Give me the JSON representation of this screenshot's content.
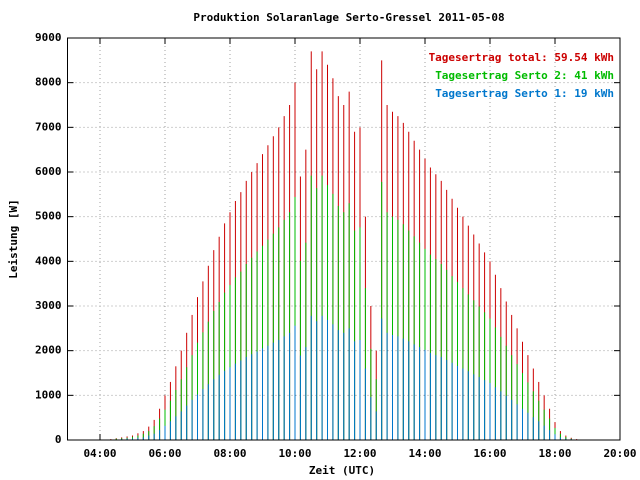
{
  "chart_data": {
    "type": "impulse",
    "title": "Produktion Solaranlage Serto-Gressel 2011-05-08",
    "x_label": "Zeit (UTC)",
    "y_label": "Leistung [W]",
    "xlim": [
      180,
      1200
    ],
    "ylim": [
      0,
      9000
    ],
    "xticks": [
      {
        "value": 240,
        "label": "04:00"
      },
      {
        "value": 360,
        "label": "06:00"
      },
      {
        "value": 480,
        "label": "08:00"
      },
      {
        "value": 600,
        "label": "10:00"
      },
      {
        "value": 720,
        "label": "12:00"
      },
      {
        "value": 840,
        "label": "14:00"
      },
      {
        "value": 960,
        "label": "16:00"
      },
      {
        "value": 1080,
        "label": "18:00"
      },
      {
        "value": 1200,
        "label": "20:00"
      }
    ],
    "yticks": [
      0,
      1000,
      2000,
      3000,
      4000,
      5000,
      6000,
      7000,
      8000,
      9000
    ],
    "grid": true,
    "legend": "top-right",
    "x": [
      240,
      250,
      260,
      270,
      280,
      290,
      300,
      310,
      320,
      330,
      340,
      350,
      360,
      370,
      380,
      390,
      400,
      410,
      420,
      430,
      440,
      450,
      460,
      470,
      480,
      490,
      500,
      510,
      520,
      530,
      540,
      550,
      560,
      570,
      580,
      590,
      600,
      610,
      620,
      630,
      640,
      650,
      660,
      670,
      680,
      690,
      700,
      710,
      720,
      730,
      740,
      750,
      760,
      770,
      780,
      790,
      800,
      810,
      820,
      830,
      840,
      850,
      860,
      870,
      880,
      890,
      900,
      910,
      920,
      930,
      940,
      950,
      960,
      970,
      980,
      990,
      1000,
      1010,
      1020,
      1030,
      1040,
      1050,
      1060,
      1070,
      1080,
      1090,
      1100,
      1110,
      1120,
      1130,
      1140
    ],
    "series": [
      {
        "name": "Tagesertrag total: 59.54 kWh",
        "color": "#cc0000",
        "values": [
          0,
          0,
          20,
          40,
          60,
          80,
          100,
          150,
          200,
          300,
          450,
          700,
          1000,
          1300,
          1650,
          2000,
          2400,
          2800,
          3200,
          3550,
          3900,
          4250,
          4550,
          4850,
          5100,
          5350,
          5550,
          5800,
          6000,
          6200,
          6400,
          6600,
          6800,
          7000,
          7250,
          7500,
          8000,
          5900,
          6500,
          8700,
          8300,
          8700,
          8400,
          8100,
          7700,
          7500,
          7800,
          6900,
          7000,
          5000,
          3000,
          2000,
          8500,
          7500,
          7350,
          7250,
          7100,
          6900,
          6700,
          6500,
          6300,
          6100,
          5950,
          5800,
          5600,
          5400,
          5200,
          5000,
          4800,
          4600,
          4400,
          4200,
          4000,
          3700,
          3400,
          3100,
          2800,
          2500,
          2200,
          1900,
          1600,
          1300,
          1000,
          700,
          400,
          200,
          100,
          50,
          20,
          0,
          0
        ]
      },
      {
        "name": "Tagesertrag Serto 2: 41 kWh",
        "color": "#00bb00",
        "values": [
          0,
          0,
          10,
          30,
          40,
          50,
          70,
          100,
          140,
          200,
          310,
          480,
          680,
          880,
          1120,
          1360,
          1630,
          1900,
          2180,
          2410,
          2650,
          2890,
          3090,
          3300,
          3470,
          3640,
          3770,
          3940,
          4080,
          4220,
          4350,
          4490,
          4620,
          4760,
          4930,
          5100,
          5440,
          4010,
          4420,
          5920,
          5640,
          5920,
          5710,
          5510,
          5240,
          5100,
          5300,
          4690,
          4760,
          3400,
          2040,
          1360,
          5780,
          5100,
          5000,
          4930,
          4830,
          4690,
          4560,
          4420,
          4280,
          4150,
          4050,
          3940,
          3810,
          3670,
          3540,
          3400,
          3260,
          3130,
          2990,
          2860,
          2720,
          2520,
          2310,
          2110,
          1900,
          1700,
          1500,
          1290,
          1090,
          880,
          680,
          480,
          270,
          140,
          70,
          30,
          10,
          0,
          0
        ]
      },
      {
        "name": "Tagesertrag Serto 1: 19 kWh",
        "color": "#0077cc",
        "values": [
          0,
          0,
          10,
          10,
          20,
          30,
          30,
          50,
          60,
          100,
          140,
          220,
          320,
          420,
          530,
          640,
          770,
          900,
          1020,
          1140,
          1250,
          1360,
          1460,
          1550,
          1630,
          1710,
          1780,
          1860,
          1920,
          1980,
          2050,
          2110,
          2180,
          2240,
          2320,
          2400,
          2560,
          1890,
          2080,
          2780,
          2660,
          2780,
          2690,
          2590,
          2460,
          2400,
          2500,
          2210,
          2240,
          1600,
          960,
          640,
          2720,
          2400,
          2350,
          2320,
          2270,
          2210,
          2140,
          2080,
          2020,
          1950,
          1900,
          1860,
          1790,
          1730,
          1660,
          1600,
          1540,
          1470,
          1410,
          1340,
          1280,
          1180,
          1090,
          990,
          900,
          800,
          700,
          610,
          510,
          420,
          320,
          220,
          130,
          60,
          30,
          20,
          10,
          0,
          0
        ]
      }
    ]
  }
}
